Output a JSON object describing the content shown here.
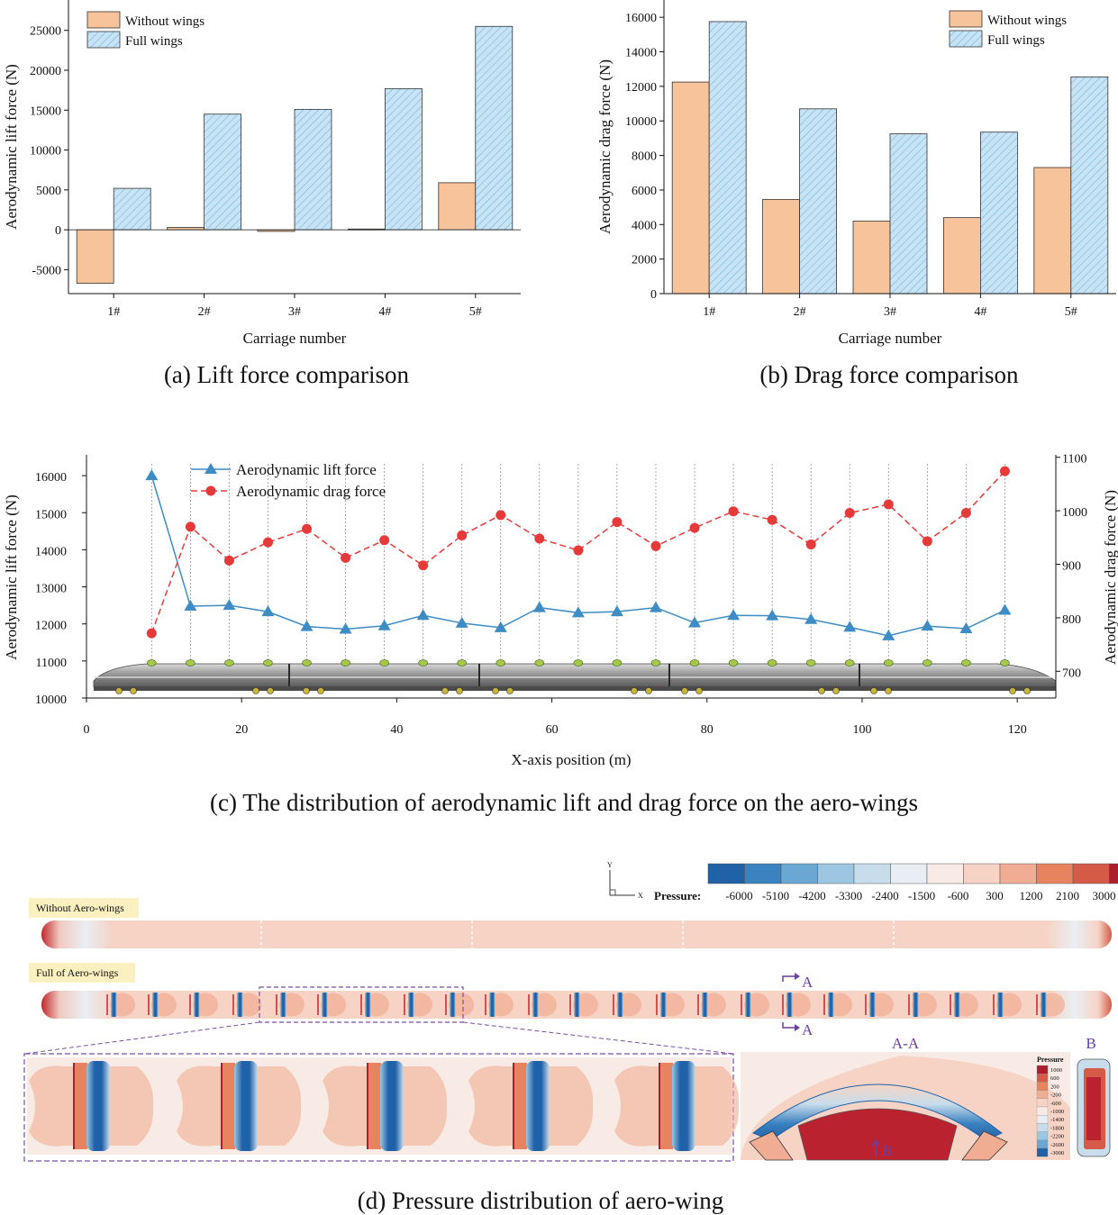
{
  "chart_data": [
    {
      "id": "a",
      "type": "bar",
      "caption": "(a) Lift force comparison",
      "xlabel": "Carriage number",
      "ylabel": "Aerodynamic lift force (N)",
      "categories": [
        "1#",
        "2#",
        "3#",
        "4#",
        "5#"
      ],
      "ylim": [
        -8000,
        27000
      ],
      "yticks": [
        -5000,
        0,
        5000,
        10000,
        15000,
        20000,
        25000
      ],
      "ytick_labels": [
        "-5000",
        "0",
        "5000",
        "10000",
        "15000",
        "20000",
        "25000"
      ],
      "series": [
        {
          "name": "Without wings",
          "values": [
            -6700,
            300,
            -200,
            100,
            5900
          ],
          "color": "#f7c39a"
        },
        {
          "name": "Full wings",
          "values": [
            5200,
            14500,
            15100,
            17700,
            25500
          ],
          "color": "#c6e4f5"
        }
      ],
      "legend": "top-left"
    },
    {
      "id": "b",
      "type": "bar",
      "caption": "(b) Drag force comparison",
      "xlabel": "Carriage number",
      "ylabel": "Aerodynamic drag force (N)",
      "categories": [
        "1#",
        "2#",
        "3#",
        "4#",
        "5#"
      ],
      "ylim": [
        0,
        17000
      ],
      "yticks": [
        0,
        2000,
        4000,
        6000,
        8000,
        10000,
        12000,
        14000,
        16000
      ],
      "ytick_labels": [
        "0",
        "2000",
        "4000",
        "6000",
        "8000",
        "10000",
        "12000",
        "14000",
        "16000"
      ],
      "series": [
        {
          "name": "Without wings",
          "values": [
            12250,
            5450,
            4200,
            4400,
            7300
          ],
          "color": "#f7c39a"
        },
        {
          "name": "Full wings",
          "values": [
            15750,
            10700,
            9250,
            9350,
            12550
          ],
          "color": "#c6e4f5"
        }
      ],
      "legend": "top-right"
    },
    {
      "id": "c",
      "type": "line",
      "caption": "(c) The distribution of aerodynamic lift and drag force on the aero-wings",
      "xlabel": "X-axis position (m)",
      "ylabel_left": "Aerodynamic lift force (N)",
      "ylabel_right": "Aerodynamic drag force (N)",
      "xlim": [
        0,
        125
      ],
      "xticks": [
        0,
        20,
        40,
        60,
        80,
        100,
        120
      ],
      "xtick_labels": [
        "0",
        "20",
        "40",
        "60",
        "80",
        "100",
        "120"
      ],
      "ylim_left": [
        10000,
        16500
      ],
      "yticks_left": [
        10000,
        11000,
        12000,
        13000,
        14000,
        15000,
        16000
      ],
      "ytick_labels_left": [
        "10000",
        "11000",
        "12000",
        "13000",
        "14000",
        "15000",
        "16000"
      ],
      "ylim_right": [
        650,
        1100
      ],
      "yticks_right": [
        700,
        800,
        900,
        1000,
        1100
      ],
      "ytick_labels_right": [
        "700",
        "800",
        "900",
        "1000",
        "1100"
      ],
      "x": [
        8.4,
        13.4,
        18.4,
        23.4,
        28.4,
        33.4,
        38.4,
        43.4,
        48.4,
        53.4,
        58.4,
        63.4,
        68.4,
        73.4,
        78.4,
        83.4,
        88.4,
        93.4,
        98.4,
        103.4,
        108.4,
        113.4,
        118.4
      ],
      "series": [
        {
          "name": "Aerodynamic lift force",
          "axis": "left",
          "color": "#3d8cc4",
          "marker": "triangle",
          "dash": "",
          "values": [
            16000,
            12480,
            12500,
            12330,
            11930,
            11860,
            11950,
            12230,
            12020,
            11900,
            12440,
            12300,
            12330,
            12440,
            12030,
            12230,
            12220,
            12120,
            11910,
            11680,
            11940,
            11870,
            12370
          ]
        },
        {
          "name": "Aerodynamic drag force",
          "axis": "right",
          "color": "#e63a3a",
          "marker": "circle",
          "dash": "7,4",
          "values": [
            771,
            970,
            907,
            941,
            966,
            912,
            945,
            898,
            954,
            992,
            948,
            926,
            979,
            934,
            968,
            999,
            983,
            937,
            996,
            1012,
            943,
            996,
            1074
          ]
        }
      ],
      "legend": "top-left"
    }
  ],
  "figure_d": {
    "caption": "(d) Pressure distribution of aero-wing",
    "label_without": "Without Aero-wings",
    "label_full": "Full of Aero-wings",
    "pressure_label": "Pressure:",
    "colorbar_values": [
      "-6000",
      "-5100",
      "-4200",
      "-3300",
      "-2400",
      "-1500",
      "-600",
      "300",
      "1200",
      "2100",
      "3000"
    ],
    "colorbar_colors": [
      "#1f62a8",
      "#3b82c0",
      "#6aa7d2",
      "#9cc6e2",
      "#c8ddec",
      "#e8eef3",
      "#f8ebe5",
      "#f6d3c4",
      "#f1ad93",
      "#e7835f",
      "#d65a48",
      "#ab1e2e"
    ],
    "axis_y": "Y",
    "axis_x": "X",
    "section_label": "A",
    "section_title": "A-A",
    "view_b": "B",
    "inset_title": "Pressure",
    "inset_values": [
      "1000",
      "600",
      "200",
      "-200",
      "-600",
      "-1000",
      "-1400",
      "-1800",
      "-2200",
      "-2600",
      "-3000"
    ]
  }
}
